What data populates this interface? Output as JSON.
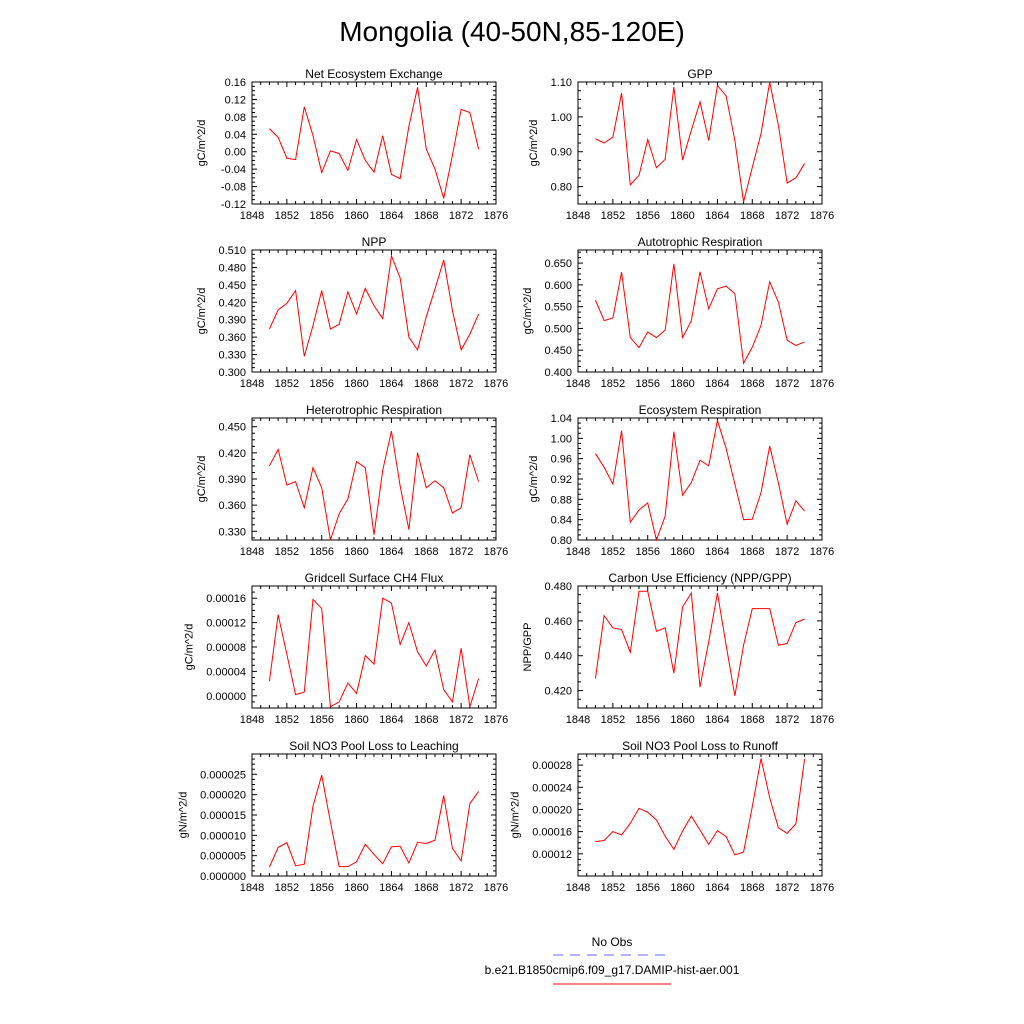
{
  "figure": {
    "title": "Mongolia (40-50N,85-120E)",
    "line_color": "#ff0000",
    "obs_color": "#6b6bff",
    "legend": [
      {
        "label": "No Obs",
        "style": "dashed",
        "color": "#6b6bff"
      },
      {
        "label": "b.e21.B1850cmip6.f09_g17.DAMIP-hist-aer.001",
        "style": "solid",
        "color": "#ff0000"
      }
    ]
  },
  "chart_data": [
    {
      "type": "line",
      "title": "Net Ecosystem Exchange",
      "ylabel": "gC/m^2/d",
      "xlim": [
        1848,
        1876
      ],
      "ylim": [
        -0.12,
        0.16
      ],
      "xticks": [
        "1848",
        "1852",
        "1856",
        "1860",
        "1864",
        "1868",
        "1872",
        "1876"
      ],
      "yticks": [
        "-0.12",
        "-0.08",
        "-0.04",
        "0.00",
        "0.04",
        "0.08",
        "0.12",
        "0.16"
      ],
      "x": [
        1850,
        1851,
        1852,
        1853,
        1854,
        1855,
        1856,
        1857,
        1858,
        1859,
        1860,
        1861,
        1862,
        1863,
        1864,
        1865,
        1866,
        1867,
        1868,
        1869,
        1870,
        1871,
        1872,
        1873,
        1874
      ],
      "y": [
        0.053,
        0.033,
        -0.015,
        -0.018,
        0.103,
        0.037,
        -0.048,
        0.002,
        -0.004,
        -0.043,
        0.028,
        -0.02,
        -0.047,
        0.037,
        -0.052,
        -0.062,
        0.058,
        0.148,
        0.006,
        -0.04,
        -0.107,
        -0.008,
        0.097,
        0.09,
        0.006
      ]
    },
    {
      "type": "line",
      "title": "GPP",
      "ylabel": "gC/m^2/d",
      "xlim": [
        1848,
        1876
      ],
      "ylim": [
        0.75,
        1.1
      ],
      "xticks": [
        "1848",
        "1852",
        "1856",
        "1860",
        "1864",
        "1868",
        "1872",
        "1876"
      ],
      "yticks": [
        "0.80",
        "0.90",
        "1.00",
        "1.10"
      ],
      "x": [
        1850,
        1851,
        1852,
        1853,
        1854,
        1855,
        1856,
        1857,
        1858,
        1859,
        1860,
        1861,
        1862,
        1863,
        1864,
        1865,
        1866,
        1867,
        1868,
        1869,
        1870,
        1871,
        1872,
        1873,
        1874
      ],
      "y": [
        0.937,
        0.925,
        0.942,
        1.068,
        0.805,
        0.832,
        0.935,
        0.854,
        0.878,
        1.086,
        0.876,
        0.961,
        1.043,
        0.932,
        1.09,
        1.06,
        0.932,
        0.756,
        0.855,
        0.952,
        1.1,
        0.975,
        0.81,
        0.825,
        0.866
      ]
    },
    {
      "type": "line",
      "title": "NPP",
      "ylabel": "gC/m^2/d",
      "xlim": [
        1848,
        1876
      ],
      "ylim": [
        0.3,
        0.51
      ],
      "xticks": [
        "1848",
        "1852",
        "1856",
        "1860",
        "1864",
        "1868",
        "1872",
        "1876"
      ],
      "yticks": [
        "0.300",
        "0.330",
        "0.360",
        "0.390",
        "0.420",
        "0.450",
        "0.480",
        "0.510"
      ],
      "x": [
        1850,
        1851,
        1852,
        1853,
        1854,
        1855,
        1856,
        1857,
        1858,
        1859,
        1860,
        1861,
        1862,
        1863,
        1864,
        1865,
        1866,
        1867,
        1868,
        1869,
        1870,
        1871,
        1872,
        1873,
        1874
      ],
      "y": [
        0.374,
        0.407,
        0.418,
        0.44,
        0.327,
        0.38,
        0.44,
        0.374,
        0.382,
        0.438,
        0.4,
        0.444,
        0.414,
        0.392,
        0.5,
        0.462,
        0.36,
        0.338,
        0.395,
        0.443,
        0.493,
        0.406,
        0.338,
        0.365,
        0.4
      ]
    },
    {
      "type": "line",
      "title": "Autotrophic Respiration",
      "ylabel": "gC/m^2/d",
      "xlim": [
        1848,
        1876
      ],
      "ylim": [
        0.4,
        0.68
      ],
      "xticks": [
        "1848",
        "1852",
        "1856",
        "1860",
        "1864",
        "1868",
        "1872",
        "1876"
      ],
      "yticks": [
        "0.400",
        "0.450",
        "0.500",
        "0.550",
        "0.600",
        "0.650"
      ],
      "x": [
        1850,
        1851,
        1852,
        1853,
        1854,
        1855,
        1856,
        1857,
        1858,
        1859,
        1860,
        1861,
        1862,
        1863,
        1864,
        1865,
        1866,
        1867,
        1868,
        1869,
        1870,
        1871,
        1872,
        1873,
        1874
      ],
      "y": [
        0.565,
        0.518,
        0.524,
        0.629,
        0.479,
        0.456,
        0.492,
        0.479,
        0.496,
        0.648,
        0.479,
        0.517,
        0.63,
        0.545,
        0.591,
        0.597,
        0.58,
        0.42,
        0.457,
        0.507,
        0.607,
        0.56,
        0.473,
        0.461,
        0.469
      ]
    },
    {
      "type": "line",
      "title": "Heterotrophic Respiration",
      "ylabel": "gC/m^2/d",
      "xlim": [
        1848,
        1876
      ],
      "ylim": [
        0.32,
        0.46
      ],
      "xticks": [
        "1848",
        "1852",
        "1856",
        "1860",
        "1864",
        "1868",
        "1872",
        "1876"
      ],
      "yticks": [
        "0.330",
        "0.360",
        "0.390",
        "0.420",
        "0.450"
      ],
      "x": [
        1850,
        1851,
        1852,
        1853,
        1854,
        1855,
        1856,
        1857,
        1858,
        1859,
        1860,
        1861,
        1862,
        1863,
        1864,
        1865,
        1866,
        1867,
        1868,
        1869,
        1870,
        1871,
        1872,
        1873,
        1874
      ],
      "y": [
        0.405,
        0.424,
        0.383,
        0.387,
        0.357,
        0.403,
        0.38,
        0.32,
        0.35,
        0.367,
        0.41,
        0.403,
        0.326,
        0.4,
        0.445,
        0.382,
        0.332,
        0.42,
        0.38,
        0.388,
        0.38,
        0.351,
        0.357,
        0.418,
        0.387
      ]
    },
    {
      "type": "line",
      "title": "Ecosystem Respiration",
      "ylabel": "gC/m^2/d",
      "xlim": [
        1848,
        1876
      ],
      "ylim": [
        0.8,
        1.04
      ],
      "xticks": [
        "1848",
        "1852",
        "1856",
        "1860",
        "1864",
        "1868",
        "1872",
        "1876"
      ],
      "yticks": [
        "0.80",
        "0.84",
        "0.88",
        "0.92",
        "0.96",
        "1.00",
        "1.04"
      ],
      "x": [
        1850,
        1851,
        1852,
        1853,
        1854,
        1855,
        1856,
        1857,
        1858,
        1859,
        1860,
        1861,
        1862,
        1863,
        1864,
        1865,
        1866,
        1867,
        1868,
        1869,
        1870,
        1871,
        1872,
        1873,
        1874
      ],
      "y": [
        0.97,
        0.943,
        0.91,
        1.015,
        0.835,
        0.859,
        0.873,
        0.8,
        0.847,
        1.013,
        0.888,
        0.913,
        0.957,
        0.946,
        1.035,
        0.98,
        0.91,
        0.84,
        0.841,
        0.893,
        0.985,
        0.912,
        0.831,
        0.877,
        0.857
      ]
    },
    {
      "type": "line",
      "title": "Gridcell Surface CH4 Flux",
      "ylabel": "gC/m^2/d",
      "xlim": [
        1848,
        1876
      ],
      "ylim": [
        -2e-05,
        0.00018
      ],
      "xticks": [
        "1848",
        "1852",
        "1856",
        "1860",
        "1864",
        "1868",
        "1872",
        "1876"
      ],
      "yticks": [
        "0.00000",
        "0.00004",
        "0.00008",
        "0.00012",
        "0.00016"
      ],
      "x": [
        1850,
        1851,
        1852,
        1853,
        1854,
        1855,
        1856,
        1857,
        1858,
        1859,
        1860,
        1861,
        1862,
        1863,
        1864,
        1865,
        1866,
        1867,
        1868,
        1869,
        1870,
        1871,
        1872,
        1873,
        1874
      ],
      "y": [
        2.4e-05,
        0.000133,
        6.8e-05,
        2e-06,
        6e-06,
        0.000158,
        0.000143,
        -1.8e-05,
        -1e-05,
        2.1e-05,
        4e-06,
        6.6e-05,
        5.2e-05,
        0.00016,
        0.000152,
        8.4e-05,
        0.00012,
        7.2e-05,
        4.9e-05,
        7.5e-05,
        1e-05,
        -1e-05,
        7.8e-05,
        -1.8e-05,
        2.8e-05
      ]
    },
    {
      "type": "line",
      "title": "Carbon Use Efficiency (NPP/GPP)",
      "ylabel": "NPP/GPP",
      "xlim": [
        1848,
        1876
      ],
      "ylim": [
        0.41,
        0.48
      ],
      "xticks": [
        "1848",
        "1852",
        "1856",
        "1860",
        "1864",
        "1868",
        "1872",
        "1876"
      ],
      "yticks": [
        "0.420",
        "0.440",
        "0.460",
        "0.480"
      ],
      "x": [
        1850,
        1851,
        1852,
        1853,
        1854,
        1855,
        1856,
        1857,
        1858,
        1859,
        1860,
        1861,
        1862,
        1863,
        1864,
        1865,
        1866,
        1867,
        1868,
        1869,
        1870,
        1871,
        1872,
        1873,
        1874
      ],
      "y": [
        0.427,
        0.463,
        0.456,
        0.455,
        0.442,
        0.477,
        0.477,
        0.454,
        0.456,
        0.43,
        0.468,
        0.476,
        0.422,
        0.448,
        0.476,
        0.446,
        0.417,
        0.446,
        0.467,
        0.467,
        0.467,
        0.446,
        0.447,
        0.459,
        0.461
      ]
    },
    {
      "type": "line",
      "title": "Soil NO3 Pool Loss to Leaching",
      "ylabel": "gN/m^2/d",
      "xlim": [
        1848,
        1876
      ],
      "ylim": [
        0,
        3e-05
      ],
      "xticks": [
        "1848",
        "1852",
        "1856",
        "1860",
        "1864",
        "1868",
        "1872",
        "1876"
      ],
      "yticks": [
        "0.000000",
        "0.000005",
        "0.000010",
        "0.000015",
        "0.000020",
        "0.000025"
      ],
      "x": [
        1850,
        1851,
        1852,
        1853,
        1854,
        1855,
        1856,
        1857,
        1858,
        1859,
        1860,
        1861,
        1862,
        1863,
        1864,
        1865,
        1866,
        1867,
        1868,
        1869,
        1870,
        1871,
        1872,
        1873,
        1874
      ],
      "y": [
        2.2e-06,
        7e-06,
        8.2e-06,
        2.5e-06,
        2.9e-06,
        1.72e-05,
        2.48e-05,
        1.33e-05,
        2.3e-06,
        2.3e-06,
        3.5e-06,
        7.8e-06,
        5.3e-06,
        3e-06,
        7.2e-06,
        7.3e-06,
        3.2e-06,
        8.3e-06,
        8e-06,
        8.8e-06,
        1.98e-05,
        6.8e-06,
        3.7e-06,
        1.78e-05,
        2.08e-05
      ]
    },
    {
      "type": "line",
      "title": "Soil NO3 Pool Loss to Runoff",
      "ylabel": "gN/m^2/d",
      "xlim": [
        1848,
        1876
      ],
      "ylim": [
        8e-05,
        0.0003
      ],
      "xticks": [
        "1848",
        "1852",
        "1856",
        "1860",
        "1864",
        "1868",
        "1872",
        "1876"
      ],
      "yticks": [
        "0.00012",
        "0.00016",
        "0.00020",
        "0.00024",
        "0.00028"
      ],
      "x": [
        1850,
        1851,
        1852,
        1853,
        1854,
        1855,
        1856,
        1857,
        1858,
        1859,
        1860,
        1861,
        1862,
        1863,
        1864,
        1865,
        1866,
        1867,
        1868,
        1869,
        1870,
        1871,
        1872,
        1873,
        1874
      ],
      "y": [
        0.000142,
        0.000144,
        0.00016,
        0.000154,
        0.000175,
        0.000202,
        0.000195,
        0.000181,
        0.000152,
        0.000128,
        0.000161,
        0.000188,
        0.000163,
        0.000137,
        0.000162,
        0.000151,
        0.000118,
        0.000123,
        0.000205,
        0.000292,
        0.000221,
        0.000167,
        0.000157,
        0.000174,
        0.000291
      ]
    }
  ]
}
